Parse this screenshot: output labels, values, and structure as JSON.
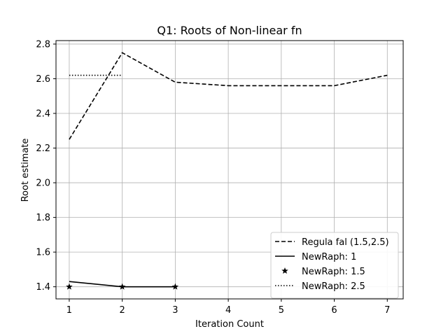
{
  "chart_data": {
    "type": "line",
    "title": "Q1: Roots of Non-linear fn",
    "xlabel": "Iteration Count",
    "ylabel": "Root estimate",
    "xlim": [
      0.75,
      7.3
    ],
    "ylim": [
      1.33,
      2.82
    ],
    "xticks": [
      1,
      2,
      3,
      4,
      5,
      6,
      7
    ],
    "yticks": [
      1.4,
      1.6,
      1.8,
      2.0,
      2.2,
      2.4,
      2.6,
      2.8
    ],
    "grid": true,
    "legend_position": "lower-right",
    "series": [
      {
        "name": "Regula fal (1.5,2.5)",
        "style": "dashed",
        "color": "#000000",
        "x": [
          1,
          2,
          3,
          4,
          5,
          6,
          7
        ],
        "y": [
          2.25,
          2.75,
          2.58,
          2.56,
          2.56,
          2.56,
          2.62
        ]
      },
      {
        "name": "NewRaph: 1",
        "style": "solid",
        "color": "#000000",
        "x": [
          1,
          2,
          3
        ],
        "y": [
          1.43,
          1.4,
          1.4
        ]
      },
      {
        "name": "NewRaph: 1.5",
        "style": "star-markers",
        "color": "#000000",
        "x": [
          1,
          2,
          3
        ],
        "y": [
          1.4,
          1.4,
          1.4
        ]
      },
      {
        "name": "NewRaph: 2.5",
        "style": "dotted",
        "color": "#000000",
        "x": [
          1,
          2
        ],
        "y": [
          2.62,
          2.62
        ]
      }
    ]
  }
}
